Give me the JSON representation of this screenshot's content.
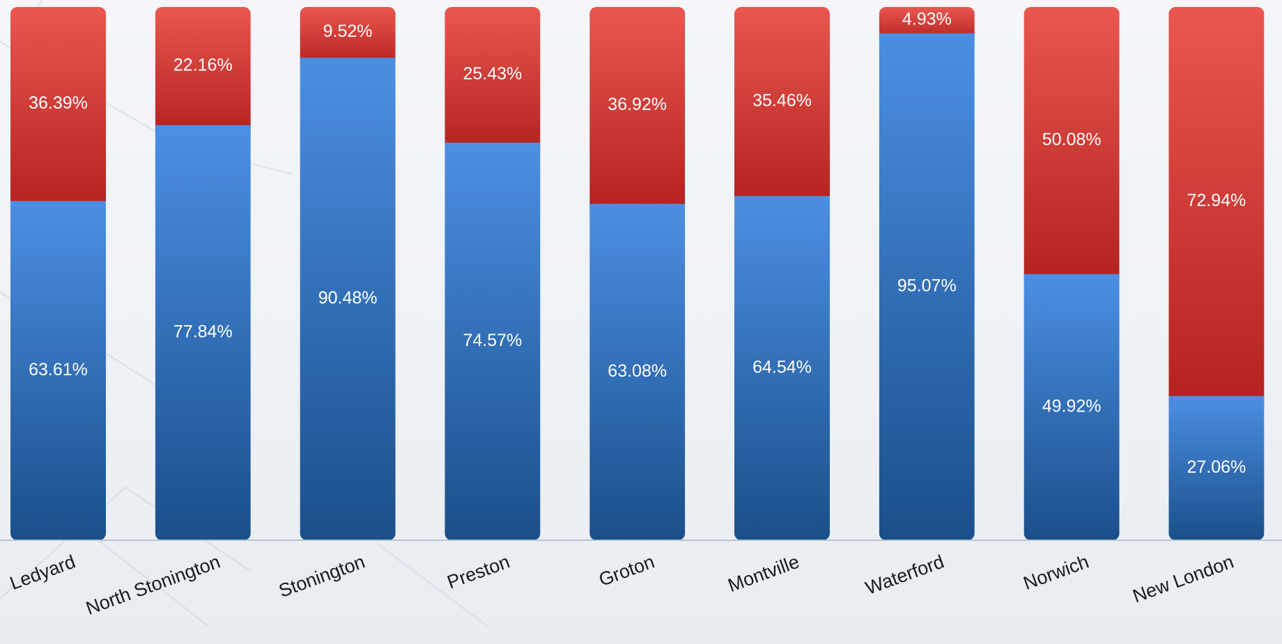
{
  "chart_data": {
    "type": "bar",
    "stacked": true,
    "normalized": true,
    "categories": [
      "Ledyard",
      "North Stonington",
      "Stonington",
      "Preston",
      "Groton",
      "Montville",
      "Waterford",
      "Norwich",
      "New London"
    ],
    "series": [
      {
        "color": "#2f6fbe",
        "values": [
          63.61,
          77.84,
          90.48,
          74.57,
          63.08,
          64.54,
          95.07,
          49.92,
          27.06
        ],
        "labels": [
          "63.61%",
          "77.84%",
          "90.48%",
          "74.57%",
          "63.08%",
          "64.54%",
          "95.07%",
          "49.92%",
          "27.06%"
        ]
      },
      {
        "color": "#d43a33",
        "values": [
          36.39,
          22.16,
          9.52,
          25.43,
          36.92,
          35.46,
          4.93,
          50.08,
          72.94
        ],
        "labels": [
          "36.39%",
          "22.16%",
          "9.52%",
          "25.43%",
          "36.92%",
          "35.46%",
          "4.93%",
          "50.08%",
          "72.94%"
        ]
      }
    ],
    "ylim": [
      0,
      100
    ],
    "xlabel": "",
    "ylabel": "",
    "title": "",
    "legend": "none",
    "grid": false
  }
}
